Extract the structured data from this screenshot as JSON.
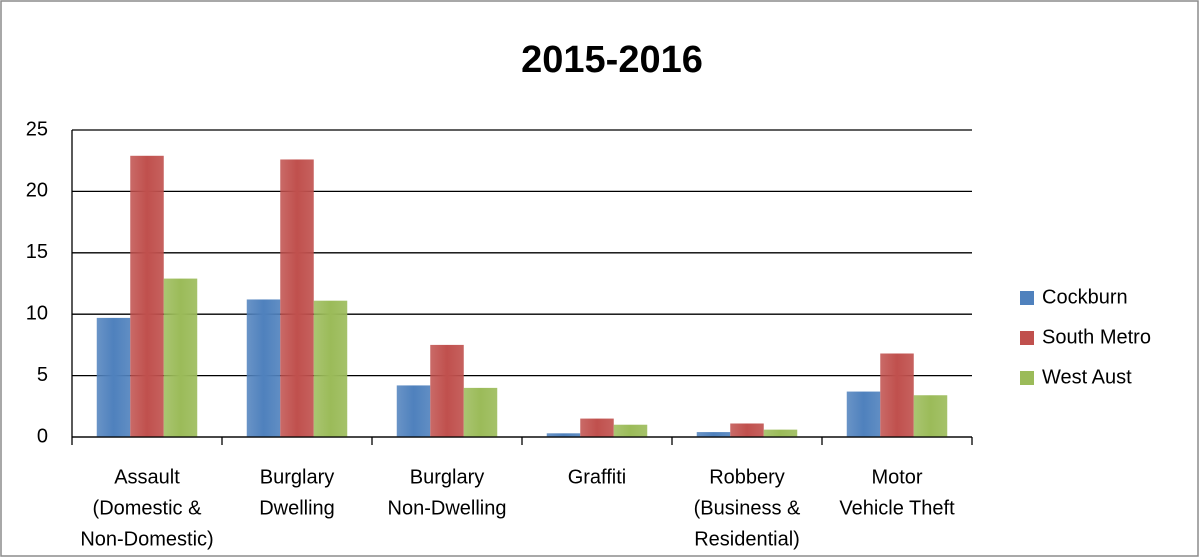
{
  "chart_data": {
    "type": "bar",
    "title": "2015-2016",
    "categories": [
      [
        "Assault",
        "(Domestic &",
        "Non-Domestic)"
      ],
      [
        "Burglary",
        "Dwelling"
      ],
      [
        "Burglary",
        "Non-Dwelling"
      ],
      [
        "Graffiti"
      ],
      [
        "Robbery",
        "(Business &",
        "Residential)"
      ],
      [
        "Motor",
        "Vehicle Theft"
      ]
    ],
    "series": [
      {
        "name": "Cockburn",
        "color": "#4f81bd",
        "values": [
          9.7,
          11.2,
          4.2,
          0.3,
          0.4,
          3.7
        ]
      },
      {
        "name": "South Metro",
        "color": "#c0504d",
        "values": [
          22.9,
          22.6,
          7.5,
          1.5,
          1.1,
          6.8
        ]
      },
      {
        "name": "West Aust",
        "color": "#9bbb59",
        "values": [
          12.9,
          11.1,
          4.0,
          1.0,
          0.6,
          3.4
        ]
      }
    ],
    "ylim": [
      0,
      25
    ],
    "yticks": [
      0,
      5,
      10,
      15,
      20,
      25
    ],
    "grid": true,
    "legend": "right"
  }
}
